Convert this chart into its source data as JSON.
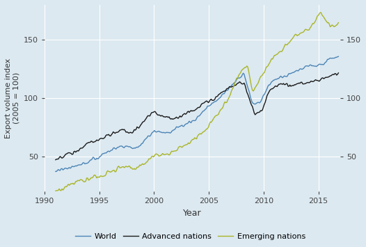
{
  "xlabel": "Year",
  "ylabel": "Export volume index\n(2005 = 100)",
  "xlim": [
    1990,
    2017
  ],
  "ylim": [
    20,
    180
  ],
  "yticks": [
    50,
    100,
    150
  ],
  "xticks": [
    1990,
    1995,
    2000,
    2005,
    2010,
    2015
  ],
  "background_color": "#dce9f1",
  "grid_color": "#ffffff",
  "world_color": "#4c84b5",
  "advanced_color": "#1a1a1a",
  "emerging_color": "#aab526",
  "line_width": 1.0,
  "legend_labels": [
    "World",
    "Advanced nations",
    "Emerging nations"
  ]
}
